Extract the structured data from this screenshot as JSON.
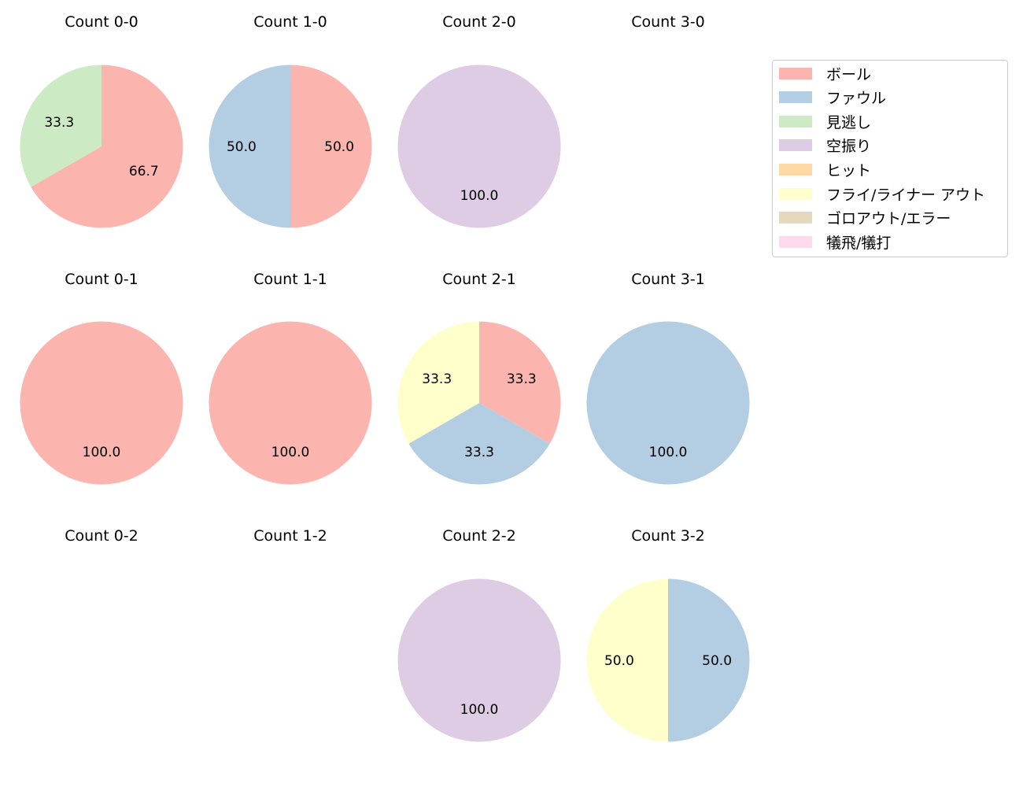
{
  "colors": {
    "ボール": "#fbb4ae",
    "ファウル": "#b3cde3",
    "見逃し": "#ccebc5",
    "空振り": "#decbe4",
    "ヒット": "#fed9a6",
    "フライ/ライナー アウト": "#ffffcc",
    "ゴロアウト/エラー": "#e5d8bd",
    "犠飛/犠打": "#fddaec"
  },
  "legend": {
    "items": [
      {
        "label": "ボール",
        "color": "#fbb4ae"
      },
      {
        "label": "ファウル",
        "color": "#b3cde3"
      },
      {
        "label": "見逃し",
        "color": "#ccebc5"
      },
      {
        "label": "空振り",
        "color": "#decbe4"
      },
      {
        "label": "ヒット",
        "color": "#fed9a6"
      },
      {
        "label": "フライ/ライナー アウト",
        "color": "#ffffcc"
      },
      {
        "label": "ゴロアウト/エラー",
        "color": "#e5d8bd"
      },
      {
        "label": "犠飛/犠打",
        "color": "#fddaec"
      }
    ]
  },
  "chart_data": {
    "type": "pie",
    "legend_position": "upper right",
    "charts": [
      {
        "title": "Count 0-0",
        "row": 0,
        "col": 0,
        "slices": [
          {
            "label": "ボール",
            "value": 66.7
          },
          {
            "label": "見逃し",
            "value": 33.3
          }
        ]
      },
      {
        "title": "Count 1-0",
        "row": 0,
        "col": 1,
        "slices": [
          {
            "label": "ボール",
            "value": 50.0
          },
          {
            "label": "ファウル",
            "value": 50.0
          }
        ]
      },
      {
        "title": "Count 2-0",
        "row": 0,
        "col": 2,
        "slices": [
          {
            "label": "空振り",
            "value": 100.0
          }
        ]
      },
      {
        "title": "Count 3-0",
        "row": 0,
        "col": 3,
        "slices": []
      },
      {
        "title": "Count 0-1",
        "row": 1,
        "col": 0,
        "slices": [
          {
            "label": "ボール",
            "value": 100.0
          }
        ]
      },
      {
        "title": "Count 1-1",
        "row": 1,
        "col": 1,
        "slices": [
          {
            "label": "ボール",
            "value": 100.0
          }
        ]
      },
      {
        "title": "Count 2-1",
        "row": 1,
        "col": 2,
        "slices": [
          {
            "label": "ボール",
            "value": 33.3
          },
          {
            "label": "ファウル",
            "value": 33.3
          },
          {
            "label": "フライ/ライナー アウト",
            "value": 33.3
          }
        ]
      },
      {
        "title": "Count 3-1",
        "row": 1,
        "col": 3,
        "slices": [
          {
            "label": "ファウル",
            "value": 100.0
          }
        ]
      },
      {
        "title": "Count 0-2",
        "row": 2,
        "col": 0,
        "slices": []
      },
      {
        "title": "Count 1-2",
        "row": 2,
        "col": 1,
        "slices": []
      },
      {
        "title": "Count 2-2",
        "row": 2,
        "col": 2,
        "slices": [
          {
            "label": "空振り",
            "value": 100.0
          }
        ]
      },
      {
        "title": "Count 3-2",
        "row": 2,
        "col": 3,
        "slices": [
          {
            "label": "ファウル",
            "value": 50.0
          },
          {
            "label": "フライ/ライナー アウト",
            "value": 50.0
          }
        ]
      }
    ]
  }
}
